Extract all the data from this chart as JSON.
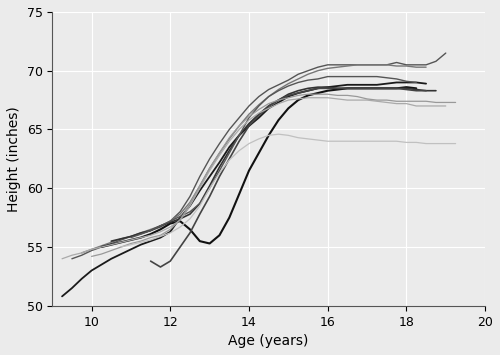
{
  "xlabel": "Age (years)",
  "ylabel": "Height (inches)",
  "xlim": [
    9,
    20
  ],
  "ylim": [
    50,
    75
  ],
  "xticks": [
    10,
    12,
    14,
    16,
    18,
    20
  ],
  "yticks": [
    50,
    55,
    60,
    65,
    70,
    75
  ],
  "background_color": "#ebebeb",
  "grid_color": "#ffffff",
  "students": [
    {
      "ages": [
        9.25,
        9.5,
        9.75,
        10.0,
        10.25,
        10.5,
        10.75,
        11.0,
        11.25,
        11.5,
        11.75,
        12.0,
        12.25,
        12.5,
        12.75,
        13.0,
        13.25,
        13.5,
        13.75,
        14.0,
        14.25,
        14.5,
        14.75,
        15.0,
        15.25,
        15.5,
        15.75,
        16.0,
        16.25,
        16.5,
        16.75,
        17.0,
        17.25,
        17.5,
        17.75,
        18.0,
        18.25,
        18.5
      ],
      "heights": [
        50.8,
        51.5,
        52.3,
        53.0,
        53.5,
        54.0,
        54.4,
        54.8,
        55.2,
        55.5,
        55.8,
        56.3,
        57.5,
        58.5,
        59.8,
        61.0,
        62.2,
        63.5,
        64.5,
        65.3,
        66.0,
        66.8,
        67.3,
        67.8,
        68.1,
        68.3,
        68.5,
        68.6,
        68.7,
        68.8,
        68.8,
        68.8,
        68.8,
        68.9,
        69.0,
        69.0,
        69.0,
        68.9
      ],
      "color": "#1a1a1a",
      "lw": 1.3
    },
    {
      "ages": [
        9.5,
        9.75,
        10.0,
        10.25,
        10.5,
        10.75,
        11.0,
        11.25,
        11.5,
        11.75,
        12.0,
        12.25,
        12.5,
        12.75,
        13.0,
        13.25,
        13.5,
        13.75,
        14.0,
        14.25,
        14.5,
        14.75,
        15.0,
        15.25,
        15.5,
        15.75,
        16.0,
        16.25,
        16.5,
        16.75,
        17.0,
        17.25,
        17.5,
        17.75,
        18.0,
        18.25,
        18.5,
        18.75,
        19.0
      ],
      "heights": [
        54.0,
        54.3,
        54.7,
        55.0,
        55.3,
        55.6,
        55.9,
        56.1,
        56.4,
        56.7,
        57.2,
        58.0,
        59.3,
        61.0,
        62.5,
        63.8,
        65.0,
        66.0,
        67.0,
        67.8,
        68.4,
        68.8,
        69.2,
        69.7,
        70.0,
        70.3,
        70.5,
        70.5,
        70.5,
        70.5,
        70.5,
        70.5,
        70.5,
        70.7,
        70.5,
        70.5,
        70.5,
        70.8,
        71.5
      ],
      "color": "#555555",
      "lw": 1.0
    },
    {
      "ages": [
        9.75,
        10.0,
        10.25,
        10.5,
        10.75,
        11.0,
        11.25,
        11.5,
        11.75,
        12.0,
        12.25,
        12.5,
        12.75,
        13.0,
        13.25,
        13.5,
        13.75,
        14.0,
        14.25,
        14.5,
        14.75,
        15.0,
        15.25,
        15.5,
        15.75,
        16.0,
        16.25,
        16.5,
        16.75,
        17.0,
        17.25,
        17.5,
        17.75,
        18.0,
        18.25,
        18.5
      ],
      "heights": [
        54.5,
        54.8,
        55.1,
        55.4,
        55.7,
        55.9,
        56.2,
        56.5,
        56.8,
        57.2,
        57.8,
        58.8,
        60.2,
        61.7,
        63.0,
        64.2,
        65.3,
        66.3,
        67.1,
        67.8,
        68.4,
        68.9,
        69.3,
        69.7,
        70.0,
        70.2,
        70.3,
        70.4,
        70.5,
        70.5,
        70.5,
        70.5,
        70.4,
        70.4,
        70.3,
        70.3
      ],
      "color": "#777777",
      "lw": 1.0
    },
    {
      "ages": [
        10.25,
        10.5,
        10.75,
        11.0,
        11.25,
        11.5,
        11.75,
        12.0,
        12.25,
        12.5,
        12.75,
        13.0,
        13.25,
        13.5,
        13.75,
        14.0,
        14.25,
        14.5,
        14.75,
        15.0,
        15.25,
        15.5,
        15.75,
        16.0,
        16.25,
        16.5,
        16.75,
        17.0,
        17.25,
        17.5,
        17.75,
        18.0,
        18.25
      ],
      "heights": [
        55.0,
        55.2,
        55.4,
        55.6,
        55.8,
        56.1,
        56.5,
        57.0,
        57.2,
        56.5,
        55.5,
        55.3,
        56.0,
        57.5,
        59.5,
        61.5,
        63.0,
        64.5,
        65.8,
        66.8,
        67.5,
        67.9,
        68.1,
        68.3,
        68.4,
        68.5,
        68.5,
        68.5,
        68.5,
        68.5,
        68.5,
        68.6,
        68.5
      ],
      "color": "#111111",
      "lw": 1.5
    },
    {
      "ages": [
        10.5,
        10.75,
        11.0,
        11.25,
        11.5,
        11.75,
        12.0,
        12.25,
        12.5,
        12.75,
        13.0,
        13.25,
        13.5,
        13.75,
        14.0,
        14.25,
        14.5,
        14.75,
        15.0,
        15.25,
        15.5,
        15.75,
        16.0,
        16.25,
        16.5,
        16.75,
        17.0,
        17.25,
        17.5,
        17.75,
        18.0,
        18.25,
        18.5,
        18.75
      ],
      "heights": [
        55.5,
        55.7,
        55.9,
        56.2,
        56.4,
        56.8,
        57.1,
        57.4,
        57.8,
        58.7,
        60.2,
        61.8,
        63.2,
        64.5,
        65.5,
        66.3,
        67.0,
        67.5,
        68.0,
        68.3,
        68.5,
        68.6,
        68.6,
        68.5,
        68.5,
        68.5,
        68.5,
        68.5,
        68.5,
        68.5,
        68.5,
        68.4,
        68.3,
        68.3
      ],
      "color": "#333333",
      "lw": 1.2
    },
    {
      "ages": [
        11.0,
        11.25,
        11.5,
        11.75,
        12.0,
        12.25,
        12.5,
        12.75,
        13.0,
        13.25,
        13.5,
        13.75,
        14.0,
        14.25,
        14.5,
        14.75,
        15.0,
        15.25,
        15.5,
        15.75,
        16.0,
        16.25,
        16.5,
        16.75,
        17.0,
        17.25,
        17.5,
        17.75,
        18.0,
        18.25
      ],
      "heights": [
        55.8,
        56.1,
        56.4,
        56.8,
        57.2,
        57.6,
        58.0,
        58.7,
        60.0,
        61.5,
        63.0,
        64.5,
        66.0,
        67.0,
        67.8,
        68.3,
        68.7,
        69.0,
        69.2,
        69.3,
        69.5,
        69.5,
        69.5,
        69.5,
        69.5,
        69.5,
        69.4,
        69.3,
        69.1,
        69.0
      ],
      "color": "#555555",
      "lw": 1.0
    },
    {
      "ages": [
        11.5,
        11.75,
        12.0,
        12.25,
        12.5,
        12.75,
        13.0,
        13.25,
        13.5,
        13.75,
        14.0,
        14.25,
        14.5,
        14.75,
        15.0,
        15.25,
        15.5,
        15.75,
        16.0,
        16.25,
        16.5,
        16.75,
        17.0,
        17.25,
        17.5,
        17.75,
        18.0,
        18.25,
        18.5
      ],
      "heights": [
        53.8,
        53.3,
        53.8,
        55.0,
        56.2,
        57.8,
        59.3,
        61.0,
        62.5,
        64.0,
        65.3,
        66.2,
        67.0,
        67.5,
        67.9,
        68.1,
        68.3,
        68.5,
        68.5,
        68.5,
        68.5,
        68.5,
        68.5,
        68.5,
        68.5,
        68.5,
        68.4,
        68.3,
        68.3
      ],
      "color": "#444444",
      "lw": 1.2
    },
    {
      "ages": [
        9.25,
        9.5,
        9.75,
        10.0,
        10.25,
        10.5,
        10.75,
        11.0,
        11.25,
        11.5,
        11.75,
        12.0,
        12.25,
        12.5,
        12.75,
        13.0,
        13.25,
        13.5,
        13.75,
        14.0,
        14.25,
        14.5,
        14.75,
        15.0,
        15.25,
        15.5,
        15.75,
        16.0,
        16.25,
        16.5,
        16.75,
        17.0,
        17.25,
        17.5,
        17.75,
        18.0,
        18.25,
        18.5,
        18.75,
        19.0
      ],
      "heights": [
        54.0,
        54.3,
        54.5,
        54.8,
        55.0,
        55.2,
        55.4,
        55.6,
        55.8,
        56.0,
        56.3,
        56.7,
        57.3,
        58.5,
        60.0,
        61.5,
        62.8,
        64.0,
        65.0,
        65.8,
        66.4,
        66.8,
        67.2,
        67.5,
        67.6,
        67.7,
        67.7,
        67.7,
        67.6,
        67.5,
        67.5,
        67.5,
        67.4,
        67.3,
        67.2,
        67.2,
        67.0,
        67.0,
        67.0,
        67.0
      ],
      "color": "#aaaaaa",
      "lw": 0.9
    },
    {
      "ages": [
        10.0,
        10.25,
        10.5,
        10.75,
        11.0,
        11.25,
        11.5,
        11.75,
        12.0,
        12.25,
        12.5,
        12.75,
        13.0,
        13.25,
        13.5,
        13.75,
        14.0,
        14.25,
        14.5,
        14.75,
        15.0,
        15.25,
        15.5,
        15.75,
        16.0,
        16.25,
        16.5,
        16.75,
        17.0,
        17.25,
        17.5,
        17.75,
        18.0,
        18.25,
        18.5,
        18.75,
        19.0,
        19.25
      ],
      "heights": [
        54.2,
        54.4,
        54.7,
        55.0,
        55.3,
        55.5,
        55.8,
        56.0,
        56.5,
        57.3,
        58.7,
        60.2,
        61.7,
        63.0,
        64.3,
        65.3,
        66.1,
        66.7,
        67.2,
        67.5,
        67.7,
        67.9,
        68.0,
        68.0,
        68.0,
        67.9,
        67.9,
        67.8,
        67.6,
        67.5,
        67.5,
        67.4,
        67.4,
        67.4,
        67.4,
        67.3,
        67.3,
        67.3
      ],
      "color": "#999999",
      "lw": 0.9
    },
    {
      "ages": [
        10.75,
        11.0,
        11.25,
        11.5,
        11.75,
        12.0,
        12.25,
        12.5,
        12.75,
        13.0,
        13.25,
        13.5,
        13.75,
        14.0,
        14.25,
        14.5,
        14.75,
        15.0,
        15.25,
        15.5,
        15.75,
        16.0,
        16.25,
        16.5,
        16.75,
        17.0,
        17.25,
        17.5,
        17.75,
        18.0,
        18.25,
        18.5,
        18.75,
        19.0,
        19.25
      ],
      "heights": [
        55.0,
        55.2,
        55.4,
        55.6,
        55.9,
        56.2,
        56.7,
        57.4,
        58.5,
        60.0,
        61.3,
        62.4,
        63.2,
        63.8,
        64.2,
        64.5,
        64.6,
        64.5,
        64.3,
        64.2,
        64.1,
        64.0,
        64.0,
        64.0,
        64.0,
        64.0,
        64.0,
        64.0,
        64.0,
        63.9,
        63.9,
        63.8,
        63.8,
        63.8,
        63.8
      ],
      "color": "#c0c0c0",
      "lw": 0.9
    }
  ]
}
